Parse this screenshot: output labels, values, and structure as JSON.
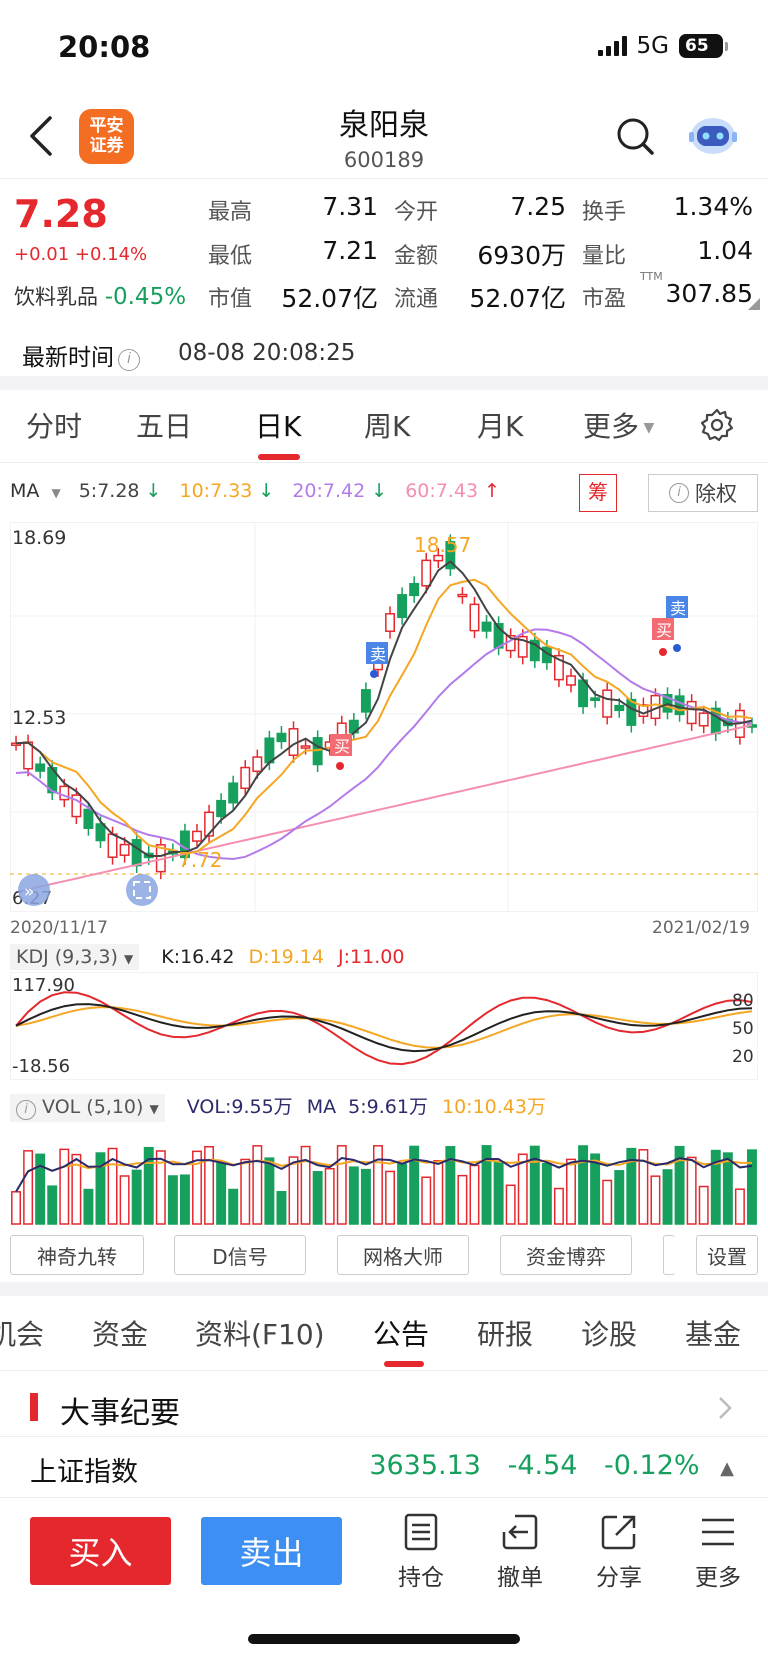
{
  "status_bar": {
    "time": "20:08",
    "network": "5G",
    "battery": "65"
  },
  "header": {
    "logo_line1": "平安",
    "logo_line2": "证券",
    "stock_name": "泉阳泉",
    "stock_code": "600189"
  },
  "quote": {
    "price": "7.28",
    "change": "+0.01 +0.14%",
    "sector_name": "饮料乳品",
    "sector_change": "-0.45%",
    "fields": [
      {
        "label": "最高",
        "value": "7.31"
      },
      {
        "label": "今开",
        "value": "7.25"
      },
      {
        "label": "换手",
        "value": "1.34%"
      },
      {
        "label": "最低",
        "value": "7.21"
      },
      {
        "label": "金额",
        "value": "6930万"
      },
      {
        "label": "量比",
        "value": "1.04"
      },
      {
        "label": "市值",
        "value": "52.07亿"
      },
      {
        "label": "流通",
        "value": "52.07亿"
      },
      {
        "label": "市盈",
        "value": "307.85"
      }
    ],
    "pe_superscript": "TTM",
    "latest_time_label": "最新时间",
    "latest_time": "08-08 20:08:25"
  },
  "chart_tabs": [
    "分时",
    "五日",
    "日K",
    "周K",
    "月K",
    "更多"
  ],
  "ma_header": {
    "label": "MA",
    "ma5": "5:7.28",
    "ma10": "10:7.33",
    "ma20": "20:7.42",
    "ma60": "60:7.43",
    "chip_label": "筹",
    "exright_label": "除权"
  },
  "chart_data": {
    "type": "candlestick",
    "price_high_label": "18.69",
    "price_mid_label": "12.53",
    "price_low_label": "6.27",
    "max_marker": "18.57",
    "min_marker": "7.72",
    "start_date": "2020/11/17",
    "end_date": "2021/02/19",
    "signals": [
      "买",
      "卖",
      "买",
      "卖"
    ],
    "colors": {
      "up": "#e5282e",
      "down": "#17a05d",
      "ma5": "#444444",
      "ma10": "#f5a623",
      "ma20": "#b37bea",
      "ma60": "#f48fb1"
    }
  },
  "kdj": {
    "selector": "KDJ (9,3,3)",
    "k": "K:16.42",
    "d": "D:19.14",
    "j": "J:11.00",
    "top": "117.90",
    "bottom": "-18.56",
    "levels": [
      "80",
      "50",
      "20"
    ]
  },
  "volume": {
    "selector": "VOL (5,10)",
    "vol": "VOL:9.55万",
    "ma_label": "MA",
    "ma5": "5:9.61万",
    "ma10": "10:10.43万"
  },
  "tools": [
    "神奇九转",
    "D信号",
    "网格大师",
    "资金博弈",
    "设置"
  ],
  "bottom_tabs": [
    "机会",
    "资金",
    "资料(F10)",
    "公告",
    "研报",
    "诊股",
    "基金"
  ],
  "events_title": "大事纪要",
  "index_row": {
    "name": "上证指数",
    "value": "3635.13",
    "change": "-4.54",
    "pct": "-0.12%"
  },
  "actions": {
    "buy": "买入",
    "sell": "卖出",
    "items": [
      "持仓",
      "撤单",
      "分享",
      "更多"
    ]
  }
}
